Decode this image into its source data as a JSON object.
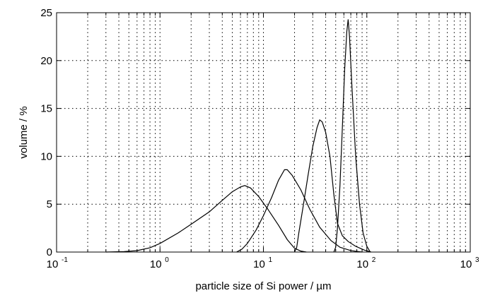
{
  "chart_data": {
    "type": "line",
    "xlabel": "particle size of Si power / µm",
    "ylabel": "volume / %",
    "xscale": "log",
    "xlim": [
      0.1,
      1000
    ],
    "ylim": [
      0,
      25
    ],
    "grid": true,
    "x_ticks": [
      {
        "base": "10",
        "exp": "-1"
      },
      {
        "base": "10",
        "exp": "0"
      },
      {
        "base": "10",
        "exp": "1"
      },
      {
        "base": "10",
        "exp": "2"
      },
      {
        "base": "10",
        "exp": "3"
      }
    ],
    "y_ticks": [
      "0",
      "5",
      "10",
      "15",
      "20",
      "25"
    ],
    "series": [
      {
        "points": [
          [
            0.3,
            0
          ],
          [
            0.45,
            0.05
          ],
          [
            0.6,
            0.15
          ],
          [
            0.8,
            0.45
          ],
          [
            1,
            0.9
          ],
          [
            1.5,
            2.0
          ],
          [
            2,
            2.9
          ],
          [
            3,
            4.2
          ],
          [
            4,
            5.4
          ],
          [
            5,
            6.3
          ],
          [
            6,
            6.8
          ],
          [
            6.6,
            6.95
          ],
          [
            7.5,
            6.7
          ],
          [
            9,
            5.8
          ],
          [
            11,
            4.5
          ],
          [
            14,
            2.8
          ],
          [
            17,
            1.3
          ],
          [
            20,
            0.4
          ],
          [
            23,
            0.1
          ],
          [
            26,
            0
          ]
        ]
      },
      {
        "points": [
          [
            5.5,
            0
          ],
          [
            6.2,
            0.3
          ],
          [
            7,
            0.9
          ],
          [
            8.5,
            2.3
          ],
          [
            10,
            3.8
          ],
          [
            12,
            5.7
          ],
          [
            14,
            7.5
          ],
          [
            16,
            8.6
          ],
          [
            17,
            8.6
          ],
          [
            19,
            8.0
          ],
          [
            23,
            6.5
          ],
          [
            28,
            4.5
          ],
          [
            35,
            2.6
          ],
          [
            45,
            1.2
          ],
          [
            55,
            0.5
          ],
          [
            70,
            0.15
          ],
          [
            90,
            0
          ]
        ]
      },
      {
        "points": [
          [
            20,
            0
          ],
          [
            21,
            0.5
          ],
          [
            22,
            2.0
          ],
          [
            24,
            4.5
          ],
          [
            27,
            8.0
          ],
          [
            30,
            11.0
          ],
          [
            33,
            13.0
          ],
          [
            35,
            13.8
          ],
          [
            37,
            13.6
          ],
          [
            40,
            12.5
          ],
          [
            44,
            10.0
          ],
          [
            48,
            6.0
          ],
          [
            52,
            3.0
          ],
          [
            58,
            1.7
          ],
          [
            66,
            1.1
          ],
          [
            78,
            0.6
          ],
          [
            95,
            0.2
          ],
          [
            110,
            0
          ]
        ]
      },
      {
        "points": [
          [
            48,
            0
          ],
          [
            50,
            0.5
          ],
          [
            52,
            2.5
          ],
          [
            55,
            7.0
          ],
          [
            58,
            13.0
          ],
          [
            61,
            19.0
          ],
          [
            64,
            23.0
          ],
          [
            66,
            24.3
          ],
          [
            68,
            22.5
          ],
          [
            72,
            17.0
          ],
          [
            78,
            10.0
          ],
          [
            85,
            5.0
          ],
          [
            92,
            2.0
          ],
          [
            100,
            0.6
          ],
          [
            108,
            0
          ]
        ]
      }
    ]
  }
}
